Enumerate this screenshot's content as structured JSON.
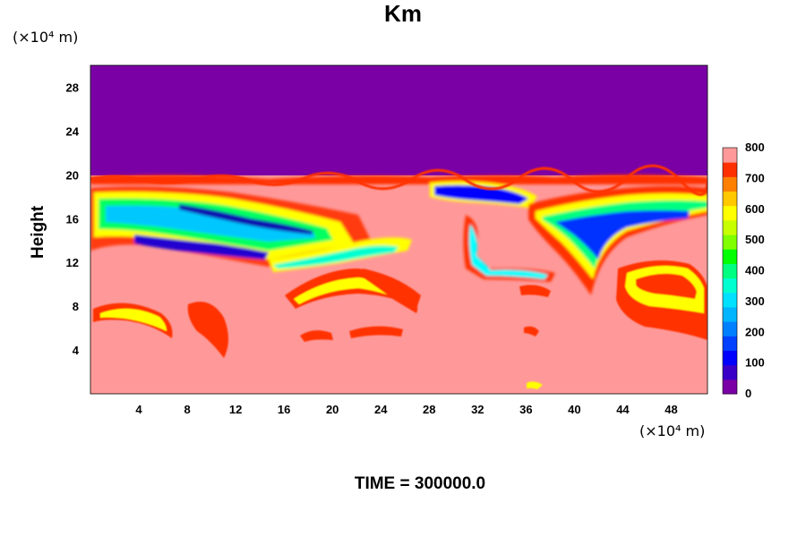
{
  "chart_data": {
    "type": "heatmap",
    "title": "Km",
    "ylabel": "Height",
    "xlabel": "",
    "x_unit": "(×10⁴ m)",
    "y_unit": "(×10⁴ m)",
    "x_ticks": [
      4,
      8,
      12,
      16,
      20,
      24,
      28,
      32,
      36,
      40,
      44,
      48
    ],
    "y_ticks": [
      4,
      8,
      12,
      16,
      20,
      24,
      28
    ],
    "xlim": [
      0,
      51
    ],
    "ylim": [
      0,
      30
    ],
    "colorbar": {
      "min": 0,
      "max": 800,
      "step": 50,
      "ticks": [
        0,
        100,
        200,
        300,
        400,
        500,
        600,
        700,
        800
      ],
      "colors": [
        "#7a00a6",
        "#3a00c8",
        "#0000ff",
        "#0040ff",
        "#0080ff",
        "#00b4ff",
        "#00e0ff",
        "#00ffd0",
        "#00ff80",
        "#00ff00",
        "#80ff00",
        "#c8ff00",
        "#ffff00",
        "#ffc800",
        "#ff8000",
        "#ff3000",
        "#ff9999"
      ]
    },
    "regions": [
      {
        "label": "upper layer (height > 20)",
        "value": 0
      },
      {
        "label": "lower layer (height < 20)",
        "value": 800
      }
    ],
    "footer": "TIME = 300000.0"
  }
}
